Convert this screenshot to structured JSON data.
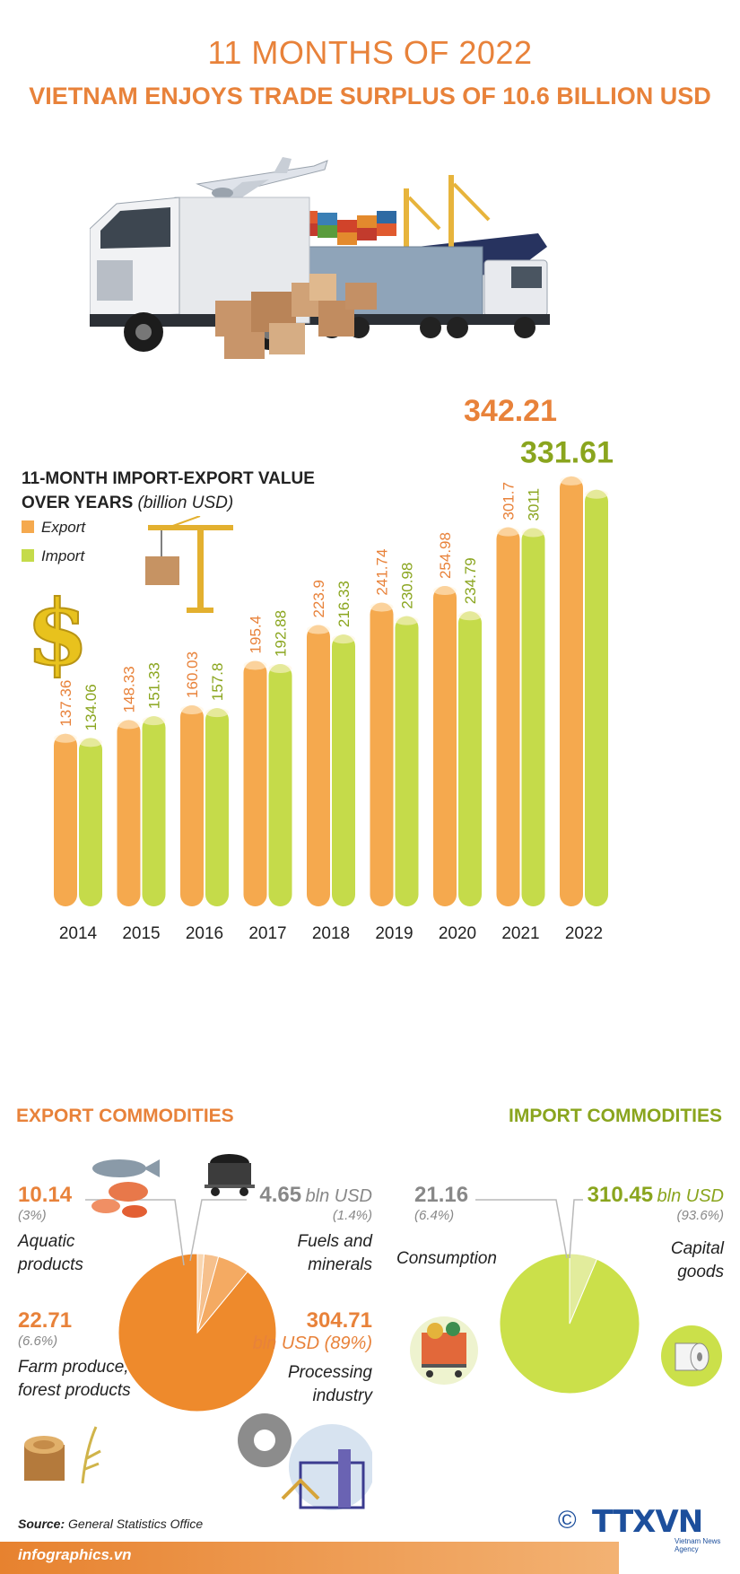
{
  "header": {
    "title_line1": "11 MONTHS OF 2022",
    "title_line2": "VIETNAM ENJOYS TRADE SURPLUS OF 10.6 BILLION USD"
  },
  "chart_data": [
    {
      "type": "bar",
      "title": "11-MONTH IMPORT-EXPORT VALUE OVER YEARS",
      "unit": "(billion USD)",
      "categories": [
        "2014",
        "2015",
        "2016",
        "2017",
        "2018",
        "2019",
        "2020",
        "2021",
        "2022"
      ],
      "series": [
        {
          "name": "Export",
          "color": "#f5a94e",
          "values": [
            137.36,
            148.33,
            160.03,
            195.4,
            223.9,
            241.74,
            254.98,
            301.7,
            342.21
          ]
        },
        {
          "name": "Import",
          "color": "#c5db4a",
          "values": [
            134.06,
            151.33,
            157.8,
            192.88,
            216.33,
            230.98,
            234.79,
            3011,
            331.61
          ]
        }
      ],
      "legend": "top-left"
    },
    {
      "type": "pie",
      "title": "EXPORT COMMODITIES",
      "slices": [
        {
          "name": "Processing industry",
          "value": 304.71,
          "percent": "(89%)",
          "value_label": "304.71",
          "unit_label": "bln USD (89%)",
          "color": "#ee8a2c"
        },
        {
          "name": "Farm produce, forest products",
          "value": 22.71,
          "percent": "(6.6%)",
          "value_label": "22.71",
          "color": "#f4aa62"
        },
        {
          "name": "Aquatic products",
          "value": 10.14,
          "percent": "(3%)",
          "value_label": "10.14",
          "color": "#f6c08c"
        },
        {
          "name": "Fuels and minerals",
          "value": 4.65,
          "percent": "(1.4%)",
          "value_label": "4.65",
          "unit_label": "bln USD",
          "color": "#f9d6b0"
        }
      ]
    },
    {
      "type": "pie",
      "title": "IMPORT COMMODITIES",
      "slices": [
        {
          "name": "Capital goods",
          "value": 310.45,
          "percent": "(93.6%)",
          "value_label": "310.45",
          "unit_label": "bln USD",
          "color": "#cbe04a"
        },
        {
          "name": "Consumption",
          "value": 21.16,
          "percent": "(6.4%)",
          "value_label": "21.16",
          "color": "#e2ec9c"
        }
      ]
    }
  ],
  "export_labels": {
    "aquatic_value": "10.14",
    "aquatic_pct": "(3%)",
    "aquatic_name_1": "Aquatic",
    "aquatic_name_2": "products",
    "fuels_value": "4.65",
    "fuels_unit": "bln USD",
    "fuels_pct": "(1.4%)",
    "fuels_name_1": "Fuels and",
    "fuels_name_2": "minerals",
    "farm_value": "22.71",
    "farm_pct": "(6.6%)",
    "farm_name_1": "Farm produce,",
    "farm_name_2": "forest products",
    "proc_value": "304.71",
    "proc_unit": "bln USD (89%)",
    "proc_name_1": "Processing",
    "proc_name_2": "industry"
  },
  "import_labels": {
    "cons_value": "21.16",
    "cons_pct": "(6.4%)",
    "cons_name": "Consumption",
    "cap_value": "310.45",
    "cap_unit": "bln USD",
    "cap_pct": "(93.6%)",
    "cap_name_1": "Capital",
    "cap_name_2": "goods"
  },
  "footer": {
    "source_label": "Source:",
    "source_value": "General Statistics Office",
    "site": "infographics.vn",
    "copyright": "©",
    "logo": "TTXVN",
    "logo_sub": "Vietnam News Agency"
  },
  "colors": {
    "accent_orange": "#e8823a",
    "export_orange": "#f5a94e",
    "import_green": "#c5db4a",
    "green_title": "#8aa51e"
  },
  "icons": [
    "airplane-truck-ship-hero-image",
    "crane-box-icon",
    "dollar-sign-icon",
    "fish-icon",
    "coal-cart-icon",
    "wood-log-icon",
    "rice-icon",
    "gear-industry-icon",
    "shopping-cart-icon",
    "paper-roll-icon"
  ]
}
